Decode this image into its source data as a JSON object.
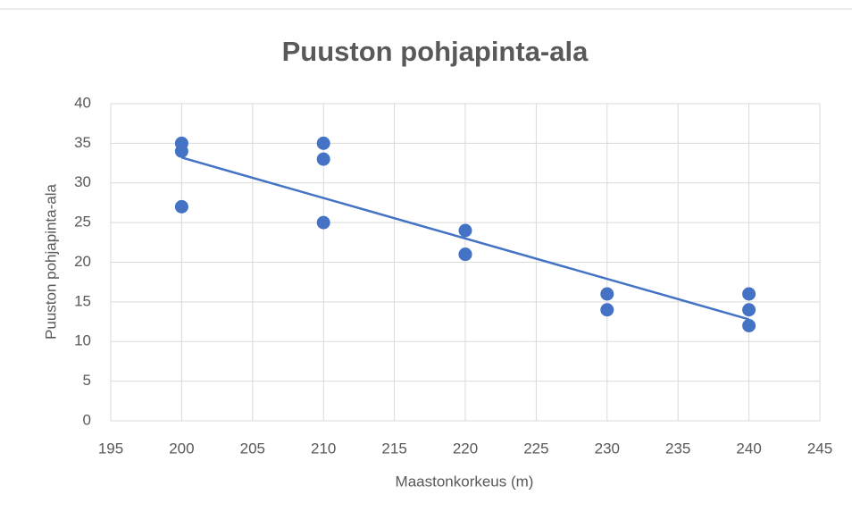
{
  "chart_data": {
    "type": "scatter",
    "title": "Puuston pohjapinta-ala",
    "xlabel": "Maastonkorkeus (m)",
    "ylabel": "Puuston pohjapinta-ala",
    "series": [
      {
        "name": "Puuston pohjapinta-ala",
        "color": "#4472c4",
        "x": [
          200,
          200,
          200,
          210,
          210,
          210,
          220,
          220,
          220,
          230,
          230,
          240,
          240,
          240
        ],
        "values": [
          35,
          34,
          27,
          35,
          33,
          25,
          24,
          21,
          21,
          16,
          14,
          16,
          14,
          12
        ]
      }
    ],
    "trendline": {
      "color": "#4472c4",
      "x": [
        200,
        240
      ],
      "values": [
        33.2,
        12.8
      ]
    },
    "xlim": [
      195,
      245
    ],
    "xticks": [
      195,
      200,
      205,
      210,
      215,
      220,
      225,
      230,
      235,
      240,
      245
    ],
    "ylim": [
      0,
      40
    ],
    "yticks": [
      0,
      5,
      10,
      15,
      20,
      25,
      30,
      35,
      40
    ],
    "grid": true
  }
}
